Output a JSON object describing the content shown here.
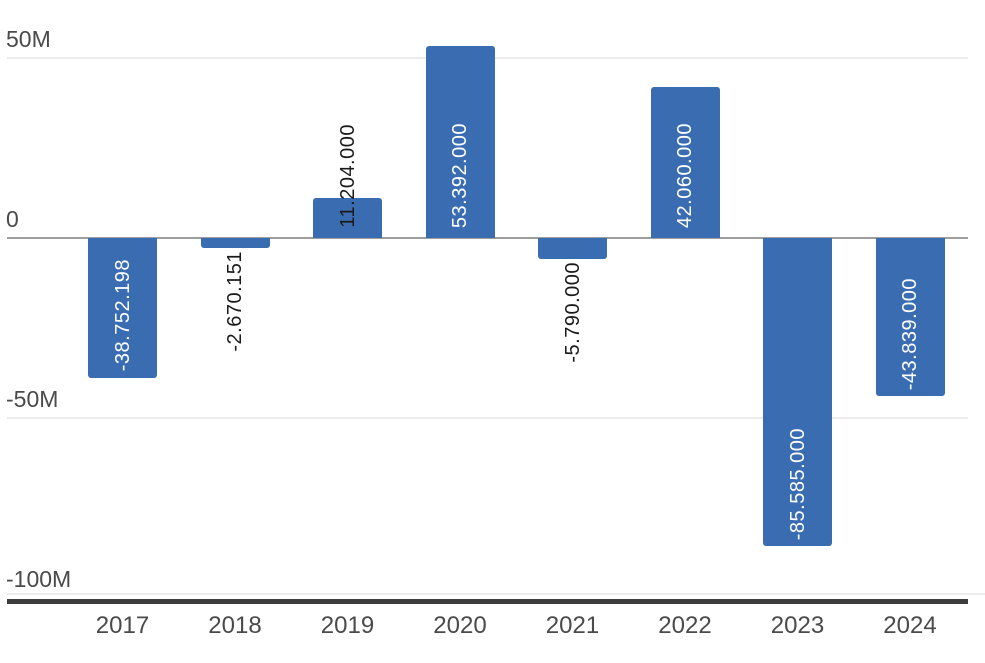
{
  "chart_data": {
    "type": "bar",
    "title": "",
    "xlabel": "",
    "ylabel": "",
    "categories": [
      "2017",
      "2018",
      "2019",
      "2020",
      "2021",
      "2022",
      "2023",
      "2024"
    ],
    "values": [
      -38752198,
      -2670151,
      11204000,
      53392000,
      -5790000,
      42060000,
      -85585000,
      -43839000
    ],
    "value_labels": [
      "-38.752.198",
      "-2.670.151",
      "11.204.000",
      "53.392.000",
      "-5.790.000",
      "42.060.000",
      "-85.585.000",
      "-43.839.000"
    ],
    "y_ticks": [
      {
        "label": "50M",
        "value": 50000000
      },
      {
        "label": "0",
        "value": 0
      },
      {
        "label": "-50M",
        "value": -50000000
      },
      {
        "label": "-100M",
        "value": -100000000
      }
    ],
    "ylim": [
      -100000000,
      58000000
    ],
    "grid": true,
    "legend": "none",
    "colors": {
      "bar": "#3a6cb1",
      "label_inside": "#ffffff",
      "label_outside": "#1a1a1a",
      "axis_text": "#4a4a4a",
      "gridline": "#ececec",
      "zero_line": "#9e9e9e",
      "axis_line": "#3c3c3c",
      "background": "#ffffff"
    }
  }
}
